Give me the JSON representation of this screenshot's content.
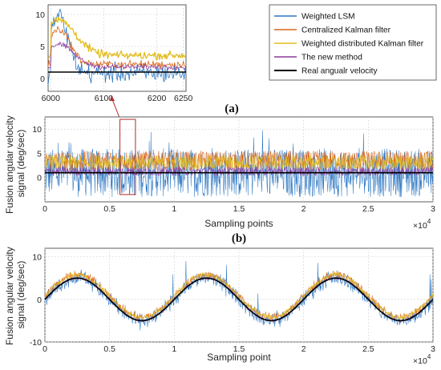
{
  "colors": {
    "weighted_lsm": "#2b76c2",
    "centralized_kalman": "#d9651a",
    "weighted_distributed_kalman": "#e3be1f",
    "new_method": "#8a3a9a",
    "real": "#000000",
    "arrow": "#b02a2a"
  },
  "chart_data": [
    {
      "id": "inset",
      "type": "line",
      "xlim": [
        5995,
        6255
      ],
      "ylim": [
        -2,
        11.5
      ],
      "x_ticks": [
        "6000",
        "6100",
        "6200",
        "6250"
      ],
      "y_ticks": [
        "0",
        "5",
        "10"
      ],
      "note": "zoomed region of panel (a) marked by the rectangle"
    },
    {
      "id": "a",
      "panel_label": "(a)",
      "type": "line",
      "xlabel": "Sampling points",
      "ylabel": "Fusion angular velocity signal (deg/sec)",
      "xlim": [
        0,
        30000
      ],
      "ylim": [
        -5,
        12.5
      ],
      "x_ticks": [
        "0",
        "0.5",
        "1",
        "1.5",
        "2",
        "2.5",
        "3"
      ],
      "y_ticks": [
        "0",
        "5",
        "10"
      ],
      "x_multiplier": "×10",
      "x_multiplier_exp": "4",
      "zoom_box": {
        "x": [
          5800,
          7000
        ],
        "y": [
          -3.5,
          12
        ]
      },
      "series": [
        {
          "name": "Weighted LSM",
          "level": 1,
          "noise_low": -4,
          "noise_high": 6
        },
        {
          "name": "Centralized Kalman filter",
          "level": 3,
          "noise_low": 1.5,
          "noise_high": 5.5
        },
        {
          "name": "Weighted distributed Kalman filter",
          "level": 3.2,
          "noise_low": 1.6,
          "noise_high": 4.6
        },
        {
          "name": "The new method",
          "level": 1.2,
          "noise_low": 0.4,
          "noise_high": 2.2
        },
        {
          "name": "Real angualr velocity",
          "level": 1
        }
      ]
    },
    {
      "id": "b",
      "panel_label": "(b)",
      "type": "line",
      "xlabel": "Sampling point",
      "ylabel": "Fusion angular velocity signal (deg/sec)",
      "xlim": [
        0,
        30000
      ],
      "ylim": [
        -10,
        12
      ],
      "x_ticks": [
        "0",
        "0.5",
        "1",
        "1.5",
        "2",
        "2.5",
        "3"
      ],
      "y_ticks": [
        "-10",
        "0",
        "10"
      ],
      "x_multiplier": "×10",
      "x_multiplier_exp": "4",
      "signal": {
        "shape": "sine",
        "amplitude": 5,
        "period": 10000,
        "peak_at": 2500
      },
      "series": [
        {
          "name": "Weighted LSM",
          "noise": 4.5
        },
        {
          "name": "Centralized Kalman filter",
          "noise": 2.5
        },
        {
          "name": "Weighted distributed Kalman filter",
          "noise": 1.8
        },
        {
          "name": "The new method",
          "noise": 0.9
        },
        {
          "name": "Real angualr velocity",
          "noise": 0
        }
      ]
    }
  ],
  "legend": {
    "placement": "top-right",
    "entries": [
      {
        "label": "Weighted LSM",
        "color": "#2b76c2"
      },
      {
        "label": "Centralized Kalman filter",
        "color": "#d9651a"
      },
      {
        "label": "Weighted distributed Kalman filter",
        "color": "#e3be1f"
      },
      {
        "label": "The new method",
        "color": "#8a3a9a"
      },
      {
        "label": "Real angualr velocity",
        "color": "#000000"
      }
    ]
  }
}
